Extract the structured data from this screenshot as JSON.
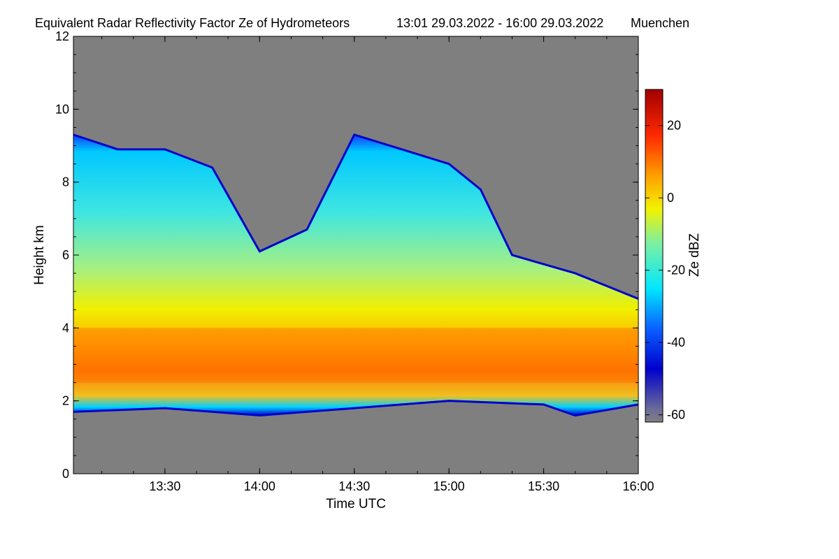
{
  "chart_data": {
    "type": "heatmap",
    "title": "Equivalent Radar Reflectivity Factor Ze of Hydrometeors",
    "time_range": "13:01 29.03.2022 - 16:00 29.03.2022",
    "location": "Muenchen",
    "xlabel": "Time UTC",
    "ylabel": "Height km",
    "xlim": [
      "13:01",
      "16:00"
    ],
    "ylim": [
      0,
      12
    ],
    "x_ticks": [
      "13:30",
      "14:00",
      "14:30",
      "15:00",
      "15:30",
      "16:00"
    ],
    "y_ticks": [
      "0",
      "2",
      "4",
      "6",
      "8",
      "10",
      "12"
    ],
    "colorbar": {
      "label": "Ze dBZ",
      "range": [
        -62,
        30
      ],
      "ticks": [
        "20",
        "0",
        "-20",
        "-40",
        "-60"
      ],
      "colors": [
        "#7f7f7f",
        "#0000cc",
        "#0a60ff",
        "#00e6ff",
        "#7ff0a0",
        "#f2f200",
        "#ffa000",
        "#ff2a00",
        "#a00000"
      ]
    },
    "background_color": "#7f7f7f",
    "echo_region": {
      "cloud_top_km": [
        {
          "time": "13:01",
          "height": 9.3
        },
        {
          "time": "13:15",
          "height": 8.9
        },
        {
          "time": "13:30",
          "height": 8.9
        },
        {
          "time": "13:45",
          "height": 8.4
        },
        {
          "time": "14:00",
          "height": 6.1
        },
        {
          "time": "14:15",
          "height": 6.7
        },
        {
          "time": "14:30",
          "height": 9.3
        },
        {
          "time": "14:45",
          "height": 8.9
        },
        {
          "time": "15:00",
          "height": 8.5
        },
        {
          "time": "15:10",
          "height": 7.8
        },
        {
          "time": "15:20",
          "height": 6.0
        },
        {
          "time": "15:40",
          "height": 5.5
        },
        {
          "time": "16:00",
          "height": 4.8
        }
      ],
      "cloud_base_km": [
        {
          "time": "13:01",
          "height": 1.7
        },
        {
          "time": "13:30",
          "height": 1.8
        },
        {
          "time": "14:00",
          "height": 1.6
        },
        {
          "time": "14:30",
          "height": 1.8
        },
        {
          "time": "15:00",
          "height": 2.0
        },
        {
          "time": "15:30",
          "height": 1.9
        },
        {
          "time": "15:40",
          "height": 1.6
        },
        {
          "time": "16:00",
          "height": 1.9
        }
      ],
      "max_reflectivity_layer_km": [
        2.5,
        4.0
      ],
      "max_reflectivity_dBZ": 15
    }
  }
}
